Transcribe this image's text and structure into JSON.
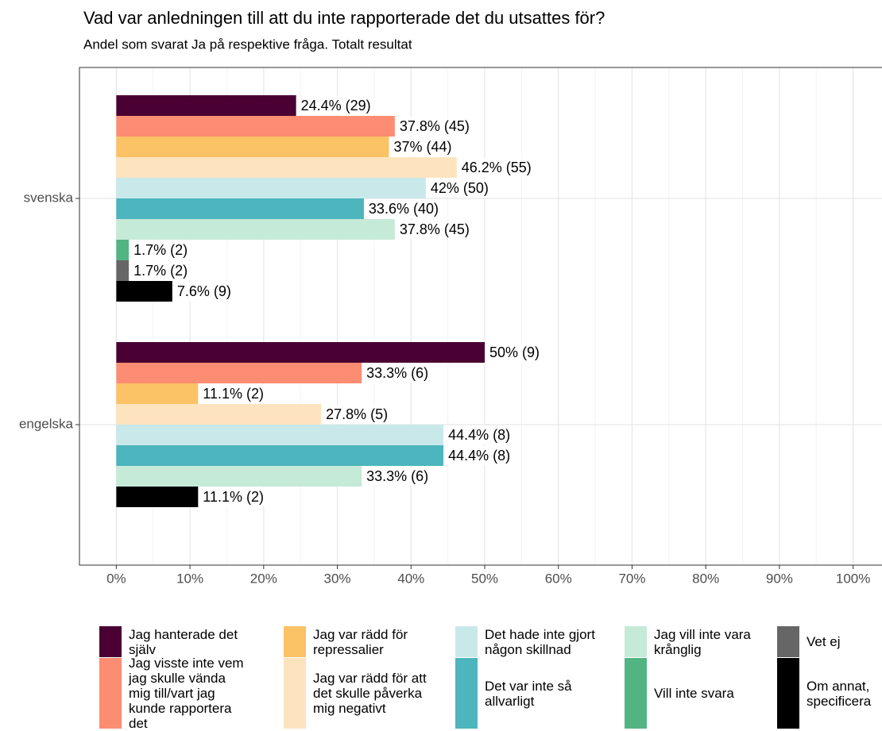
{
  "chart_data": {
    "type": "bar",
    "orientation": "horizontal",
    "title": "Vad var anledningen till att du inte rapporterade det du utsattes för?",
    "subtitle": "Andel som svarat Ja på respektive fråga. Totalt resultat",
    "categories": [
      "svenska",
      "engelska"
    ],
    "series": [
      {
        "name": "Jag hanterade det själv",
        "color": "#4a0032",
        "values": [
          24.4,
          50
        ],
        "value_labels": [
          "24.4% (29)",
          "50% (9)"
        ]
      },
      {
        "name": "Jag visste inte vem jag skulle vända mig till/vart jag kunde rapportera det",
        "color": "#fc8d72",
        "values": [
          37.8,
          33.3
        ],
        "value_labels": [
          "37.8% (45)",
          "33.3% (6)"
        ]
      },
      {
        "name": "Jag var rädd för repressalier",
        "color": "#fcc266",
        "values": [
          37,
          11.1
        ],
        "value_labels": [
          "37% (44)",
          "11.1% (2)"
        ]
      },
      {
        "name": "Jag var rädd för att det skulle påverka mig negativt",
        "color": "#fde4bf",
        "values": [
          46.2,
          27.8
        ],
        "value_labels": [
          "46.2% (55)",
          "27.8% (5)"
        ]
      },
      {
        "name": "Det hade inte gjort någon skillnad",
        "color": "#c9e8ea",
        "values": [
          42,
          44.4
        ],
        "value_labels": [
          "42% (50)",
          "44.4% (8)"
        ]
      },
      {
        "name": "Det var inte så allvarligt",
        "color": "#4cb5bd",
        "values": [
          33.6,
          44.4
        ],
        "value_labels": [
          "33.6% (40)",
          "44.4% (8)"
        ]
      },
      {
        "name": "Jag vill inte vara krånglig",
        "color": "#c6ead8",
        "values": [
          37.8,
          33.3
        ],
        "value_labels": [
          "37.8% (45)",
          "33.3% (6)"
        ]
      },
      {
        "name": "Vill inte svara",
        "color": "#52b483",
        "values": [
          1.7,
          null
        ],
        "value_labels": [
          "1.7% (2)",
          null
        ]
      },
      {
        "name": "Vet ej",
        "color": "#666666",
        "values": [
          1.7,
          null
        ],
        "value_labels": [
          "1.7% (2)",
          null
        ]
      },
      {
        "name": "Om annat, specificera",
        "color": "#000000",
        "values": [
          7.6,
          11.1
        ],
        "value_labels": [
          "7.6% (9)",
          "11.1% (2)"
        ]
      }
    ],
    "xlim": [
      -5,
      105
    ],
    "xticks": [
      {
        "value": 0,
        "label": "0%"
      },
      {
        "value": 10,
        "label": "10%"
      },
      {
        "value": 20,
        "label": "20%"
      },
      {
        "value": 30,
        "label": "30%"
      },
      {
        "value": 40,
        "label": "40%"
      },
      {
        "value": 50,
        "label": "50%"
      },
      {
        "value": 60,
        "label": "60%"
      },
      {
        "value": 70,
        "label": "70%"
      },
      {
        "value": 80,
        "label": "80%"
      },
      {
        "value": 90,
        "label": "90%"
      },
      {
        "value": 100,
        "label": "100%"
      }
    ],
    "grid": true,
    "legend": "bottom"
  }
}
